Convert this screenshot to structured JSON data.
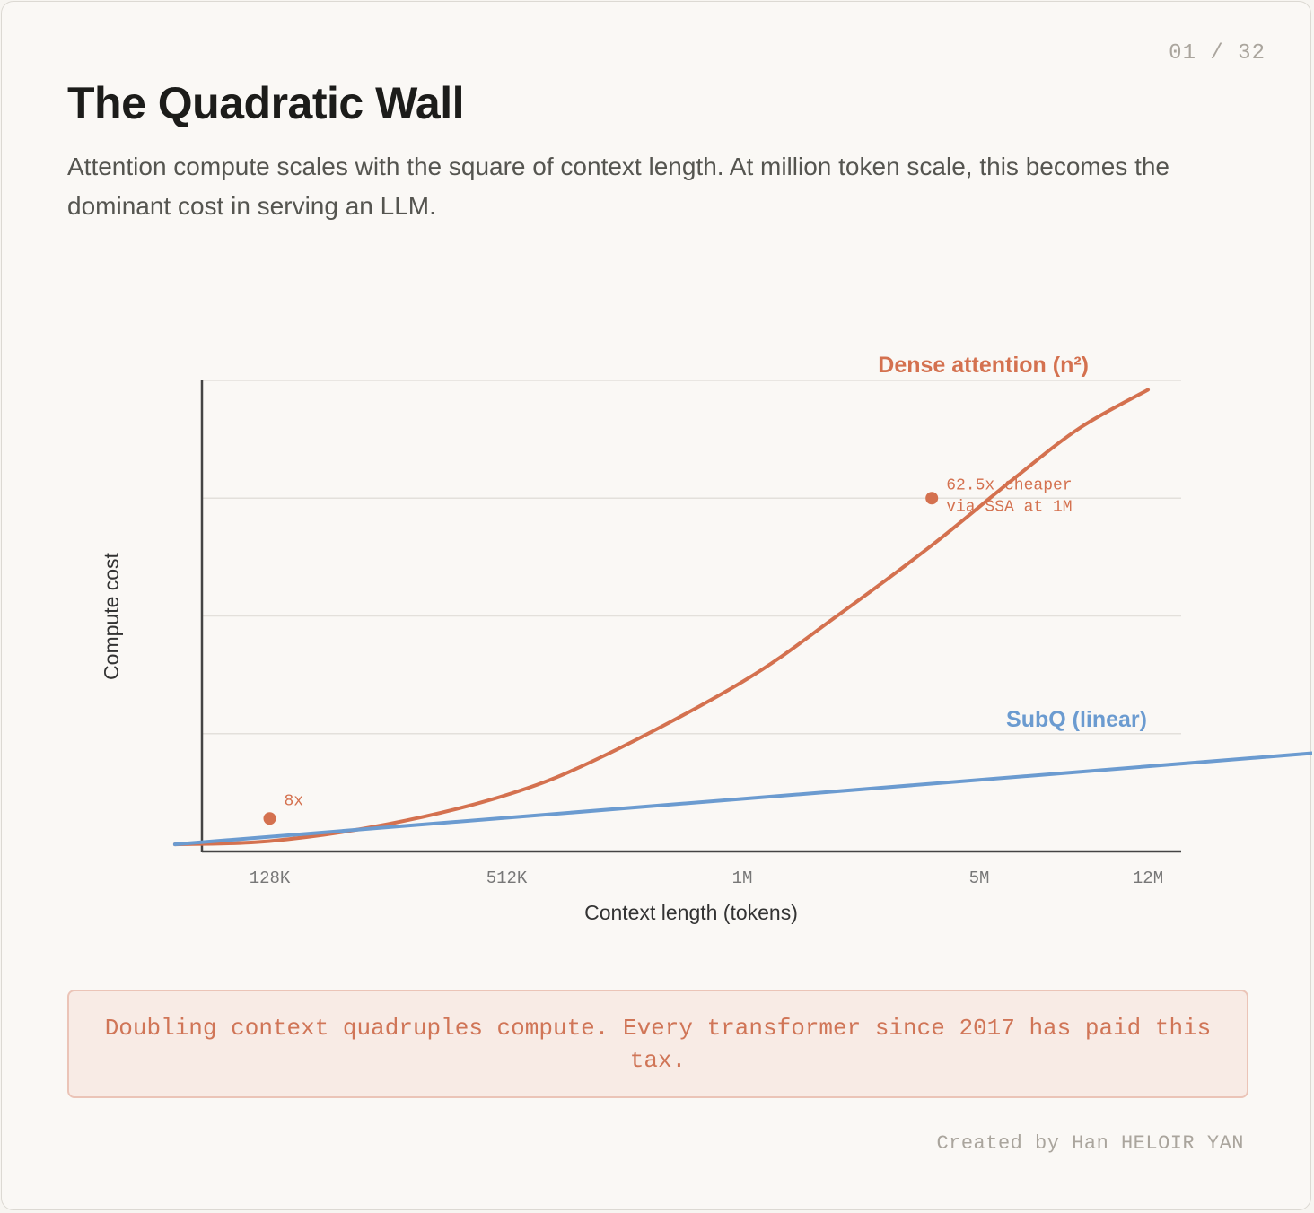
{
  "page_counter": "01 / 32",
  "title": "The Quadratic Wall",
  "subtitle": "Attention compute scales with the square of context length. At million token scale, this becomes the dominant cost in serving an LLM.",
  "callout": "Doubling context quadruples compute. Every transformer since 2017 has paid this tax.",
  "credit": "Created by Han HELOIR YAN",
  "colors": {
    "dense": "#d4714f",
    "subq": "#6b9bd0",
    "axis": "#444444",
    "grid": "#e3e0db"
  },
  "chart_data": {
    "type": "line",
    "xlabel": "Context length (tokens)",
    "ylabel": "Compute cost",
    "x": [
      "128K",
      "512K",
      "1M",
      "5M",
      "12M"
    ],
    "grid": true,
    "y_gridlines": 4,
    "series": [
      {
        "name": "Dense attention (n²)",
        "color": "#d4714f",
        "points": [
          [
            -0.4,
            0.015
          ],
          [
            0.0,
            0.022
          ],
          [
            0.5,
            0.058
          ],
          [
            1.0,
            0.12
          ],
          [
            1.4,
            0.2
          ],
          [
            2.0,
            0.36
          ],
          [
            2.4,
            0.5
          ],
          [
            2.8,
            0.65
          ],
          [
            3.2,
            0.79
          ],
          [
            3.6,
            0.9
          ],
          [
            4.0,
            0.98
          ]
        ]
      },
      {
        "name": "SubQ (linear)",
        "color": "#6b9bd0",
        "points": [
          [
            -0.4,
            0.015
          ],
          [
            5.2,
            0.215
          ]
        ]
      }
    ],
    "annotations": [
      {
        "x": 0.0,
        "y": 0.07,
        "lines": [
          "8x"
        ]
      },
      {
        "x": 2.8,
        "y": 0.75,
        "lines": [
          "62.5x cheaper",
          "via SSA at 1M"
        ]
      }
    ]
  }
}
